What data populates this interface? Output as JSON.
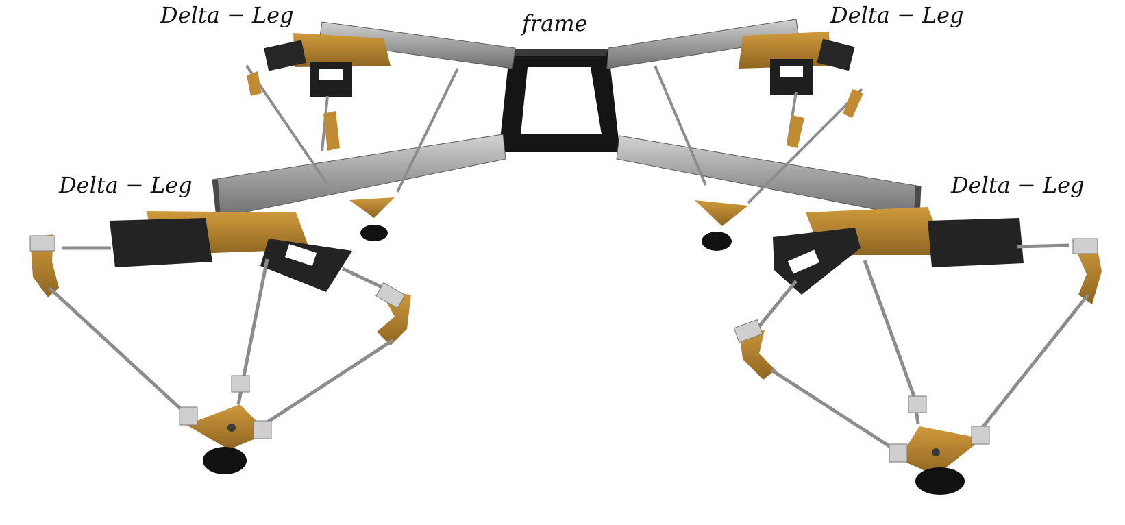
{
  "labels": {
    "frame": "frame",
    "leg_top_left": "Delta − Leg",
    "leg_top_right": "Delta − Leg",
    "leg_bottom_left": "Delta − Leg",
    "leg_bottom_right": "Delta − Leg"
  },
  "colors": {
    "background": "#ffffff",
    "beam": "#a9a9a9",
    "beam_dark": "#7d7d7d",
    "frame": "#1a1a1a",
    "bracket": "#b8862f",
    "bracket_dark": "#8a6320",
    "motor": "#262626",
    "rod": "#8c8c8c",
    "joint": "#c8c8c8",
    "foot": "#111111"
  }
}
